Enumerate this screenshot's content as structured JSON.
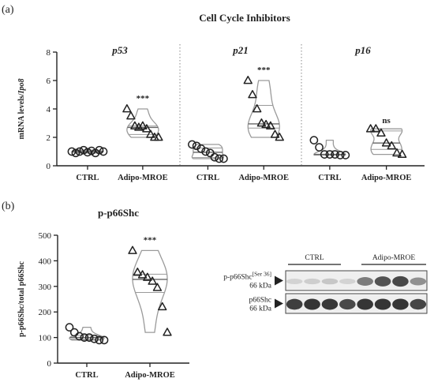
{
  "panel_a": {
    "letter": "(a)",
    "title": "Cell Cycle Inhibitors"
  },
  "panel_b": {
    "letter": "(b)"
  },
  "chart_data": [
    {
      "type": "scatter",
      "title": "Cell Cycle Inhibitors",
      "ylabel": "mRNA levels/Ipo8",
      "ylim": [
        0,
        8
      ],
      "yticks": [
        0,
        2,
        4,
        6,
        8
      ],
      "plot_style": "violin with individual points",
      "groups": [
        {
          "name": "p53",
          "categories": [
            "CTRL",
            "Adipo-MROE"
          ],
          "significance": [
            "",
            "***"
          ],
          "series": [
            {
              "category": "CTRL",
              "marker": "circle",
              "values": [
                1.0,
                0.9,
                1.0,
                1.1,
                0.95,
                1.05,
                0.9,
                1.1,
                1.0
              ]
            },
            {
              "category": "Adipo-MROE",
              "marker": "triangle",
              "values": [
                4.0,
                3.5,
                2.8,
                2.7,
                2.8,
                2.6,
                2.2,
                2.0,
                2.0
              ]
            }
          ]
        },
        {
          "name": "p21",
          "categories": [
            "CTRL",
            "Adipo-MROE"
          ],
          "significance": [
            "",
            "***"
          ],
          "series": [
            {
              "category": "CTRL",
              "marker": "circle",
              "values": [
                1.5,
                1.4,
                1.2,
                1.0,
                0.9,
                0.6,
                0.5,
                0.5
              ]
            },
            {
              "category": "Adipo-MROE",
              "marker": "triangle",
              "values": [
                6.0,
                5.0,
                4.0,
                3.0,
                2.9,
                2.8,
                2.2,
                2.0
              ]
            }
          ]
        },
        {
          "name": "p16",
          "categories": [
            "CTRL",
            "Adipo-MROE"
          ],
          "significance": [
            "",
            "ns"
          ],
          "series": [
            {
              "category": "CTRL",
              "marker": "circle",
              "values": [
                1.8,
                1.3,
                0.8,
                0.8,
                0.8,
                0.75,
                0.75
              ]
            },
            {
              "category": "Adipo-MROE",
              "marker": "triangle",
              "values": [
                2.6,
                2.6,
                2.3,
                1.6,
                1.4,
                0.9,
                0.8
              ]
            }
          ]
        }
      ]
    },
    {
      "type": "scatter",
      "title": "p-p66Shc",
      "ylabel": "p-p66Shc/total p66Shc",
      "ylim": [
        0,
        500
      ],
      "yticks": [
        0,
        100,
        200,
        300,
        400,
        500
      ],
      "plot_style": "violin with individual points",
      "categories": [
        "CTRL",
        "Adipo-MROE"
      ],
      "significance": [
        "",
        "***"
      ],
      "series": [
        {
          "category": "CTRL",
          "marker": "circle",
          "values": [
            140,
            120,
            105,
            100,
            100,
            95,
            90,
            90
          ]
        },
        {
          "category": "Adipo-MROE",
          "marker": "triangle",
          "values": [
            440,
            355,
            345,
            335,
            320,
            295,
            220,
            120
          ]
        }
      ]
    }
  ],
  "blot": {
    "groups": [
      "CTRL",
      "Adipo-MROE"
    ],
    "rows": [
      {
        "label": "p-p66Shc",
        "label_sup": "[Ser 36]",
        "kda": "66 kDa",
        "intensities": [
          0.12,
          0.15,
          0.18,
          0.12,
          0.55,
          0.75,
          0.8,
          0.45
        ]
      },
      {
        "label": "p66Shc",
        "label_sup": "",
        "kda": "66 kDa",
        "intensities": [
          0.85,
          0.9,
          0.88,
          0.8,
          0.9,
          0.9,
          0.9,
          0.82
        ]
      }
    ]
  },
  "colors": {
    "ink": "#222222",
    "violin_stroke": "#9a9a9a",
    "violin_fill": "#ffffff"
  }
}
